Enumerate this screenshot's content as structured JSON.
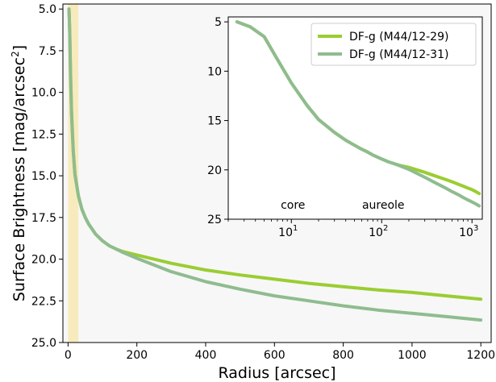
{
  "chart_data": [
    {
      "type": "line",
      "title": "",
      "xlabel": "Radius [arcsec]",
      "ylabel": "Surface Brightness [mag/arcsec",
      "ylabel_sup": "2",
      "ylabel_end": "]",
      "xlim": [
        -15,
        1230
      ],
      "ylim": [
        25.0,
        4.7
      ],
      "y_inverted": true,
      "x_ticks": [
        0,
        200,
        400,
        600,
        800,
        1000,
        1200
      ],
      "x_tick_labels": [
        "0",
        "200",
        "400",
        "600",
        "800",
        "1000",
        "1200"
      ],
      "y_ticks": [
        5.0,
        7.5,
        10.0,
        12.5,
        15.0,
        17.5,
        20.0,
        22.5,
        25.0
      ],
      "y_tick_labels": [
        "5.0",
        "7.5",
        "10.0",
        "12.5",
        "15.0",
        "17.5",
        "20.0",
        "22.5",
        "25.0"
      ],
      "background": "#f7f7f7",
      "shaded_region": {
        "x": [
          0,
          30
        ],
        "color": "#f7ebbd"
      },
      "series": [
        {
          "name": "DF-g (M44/12-29)",
          "color": "#9acd32",
          "x": [
            2.5,
            3.5,
            5,
            7,
            10,
            15,
            20,
            30,
            40,
            50,
            60,
            70,
            80,
            100,
            120,
            140,
            160,
            200,
            300,
            400,
            500,
            600,
            700,
            800,
            900,
            1000,
            1100,
            1200
          ],
          "y": [
            5.0,
            5.5,
            6.5,
            8.8,
            11.2,
            13.5,
            14.9,
            16.2,
            17.0,
            17.5,
            17.9,
            18.2,
            18.5,
            18.9,
            19.2,
            19.4,
            19.55,
            19.75,
            20.25,
            20.65,
            20.95,
            21.2,
            21.45,
            21.65,
            21.85,
            22.0,
            22.2,
            22.4
          ]
        },
        {
          "name": "DF-g (M44/12-31)",
          "color": "#8fbc8f",
          "x": [
            2.5,
            3.5,
            5,
            7,
            10,
            15,
            20,
            30,
            40,
            50,
            60,
            70,
            80,
            100,
            120,
            140,
            160,
            200,
            300,
            400,
            500,
            600,
            700,
            800,
            900,
            1000,
            1100,
            1200
          ],
          "y": [
            5.0,
            5.5,
            6.5,
            8.8,
            11.2,
            13.5,
            14.9,
            16.2,
            17.0,
            17.5,
            17.9,
            18.2,
            18.5,
            18.9,
            19.2,
            19.4,
            19.6,
            19.95,
            20.75,
            21.35,
            21.8,
            22.2,
            22.5,
            22.8,
            23.05,
            23.25,
            23.45,
            23.65
          ]
        }
      ]
    },
    {
      "type": "line",
      "title": "",
      "xlabel": "",
      "ylabel": "",
      "x_scale": "log",
      "xlim": [
        2,
        1300
      ],
      "ylim": [
        25,
        4.5
      ],
      "y_inverted": true,
      "x_ticks": [
        10,
        100,
        1000
      ],
      "x_tick_labels": [
        "10",
        "10",
        "10"
      ],
      "x_tick_exponents": [
        "1",
        "2",
        "3"
      ],
      "y_ticks": [
        5,
        10,
        15,
        20,
        25
      ],
      "y_tick_labels": [
        "5",
        "10",
        "15",
        "20",
        "25"
      ],
      "legend": "top-right",
      "annotations": [
        {
          "text": "core",
          "x": 10,
          "y": 24.2
        },
        {
          "text": "aureole",
          "x": 100,
          "y": 24.2
        }
      ],
      "series_ref": "same as main panel"
    }
  ]
}
